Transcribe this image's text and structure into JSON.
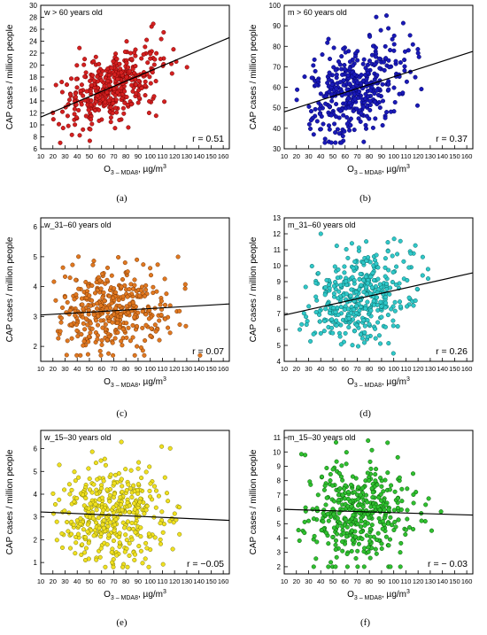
{
  "chart_data": [
    {
      "id": "a",
      "type": "scatter",
      "caption": "(a)",
      "title": "w > 60 years old",
      "xlabel_main": "O",
      "xlabel_sub": "3 – MDA8",
      "xlabel_unit": ", µg/m",
      "ylabel": "CAP cases / million people",
      "xlim": [
        10,
        165
      ],
      "ylim": [
        6,
        30
      ],
      "xticks": [
        10,
        20,
        30,
        40,
        50,
        60,
        70,
        80,
        90,
        100,
        110,
        120,
        130,
        140,
        150,
        160
      ],
      "yticks": [
        6,
        8,
        10,
        12,
        14,
        16,
        18,
        20,
        22,
        24,
        26,
        28,
        30
      ],
      "r_label": "r = 0.51",
      "fit": {
        "x": [
          10,
          165
        ],
        "y": [
          11.3,
          24.6
        ]
      },
      "point_color": "#d42020",
      "point_stroke": "#6a0000",
      "scatter": {
        "n": 400,
        "x_center": 70,
        "x_sd": 22,
        "x_min": 20,
        "x_max": 152,
        "y_mean": 16.2,
        "y_sd": 3.3,
        "r": 0.51,
        "y_min": 7,
        "y_max": 28.5
      }
    },
    {
      "id": "b",
      "type": "scatter",
      "caption": "(b)",
      "title": "m > 60 years old",
      "xlabel_main": "O",
      "xlabel_sub": "3 – MDA8",
      "xlabel_unit": ", µg/m",
      "ylabel": "CAP cases / million people",
      "xlim": [
        10,
        165
      ],
      "ylim": [
        30,
        100
      ],
      "xticks": [
        10,
        20,
        30,
        40,
        50,
        60,
        70,
        80,
        90,
        100,
        110,
        120,
        130,
        140,
        150,
        160
      ],
      "yticks": [
        30,
        40,
        50,
        60,
        70,
        80,
        90,
        100
      ],
      "r_label": "r = 0.37",
      "fit": {
        "x": [
          10,
          165
        ],
        "y": [
          48,
          77.5
        ]
      },
      "point_color": "#1a1ab8",
      "point_stroke": "#000060",
      "scatter": {
        "n": 400,
        "x_center": 70,
        "x_sd": 22,
        "x_min": 20,
        "x_max": 152,
        "y_mean": 59.5,
        "y_sd": 11.5,
        "r": 0.37,
        "y_min": 33,
        "y_max": 95
      }
    },
    {
      "id": "c",
      "type": "scatter",
      "caption": "(c)",
      "title": "w_31–60 years old",
      "xlabel_main": "O",
      "xlabel_sub": "3 – MDA8",
      "xlabel_unit": ", µg/m",
      "ylabel": "CAP cases / million people",
      "xlim": [
        10,
        165
      ],
      "ylim": [
        1.5,
        6.3
      ],
      "xticks": [
        10,
        20,
        30,
        40,
        50,
        60,
        70,
        80,
        90,
        100,
        110,
        120,
        130,
        140,
        150,
        160
      ],
      "yticks": [
        2,
        3,
        4,
        5,
        6
      ],
      "r_label": "r = 0.07",
      "fit": {
        "x": [
          10,
          165
        ],
        "y": [
          3.05,
          3.42
        ]
      },
      "point_color": "#e07820",
      "point_stroke": "#703000",
      "scatter": {
        "n": 400,
        "x_center": 70,
        "x_sd": 22,
        "x_min": 20,
        "x_max": 152,
        "y_mean": 3.2,
        "y_sd": 0.72,
        "r": 0.07,
        "y_min": 1.7,
        "y_max": 5.9
      }
    },
    {
      "id": "d",
      "type": "scatter",
      "caption": "(d)",
      "title": "m_31–60 years old",
      "xlabel_main": "O",
      "xlabel_sub": "3 – MDA8",
      "xlabel_unit": ", µg/m",
      "ylabel": "CAP cases / million people",
      "xlim": [
        10,
        165
      ],
      "ylim": [
        4,
        13
      ],
      "xticks": [
        10,
        20,
        30,
        40,
        50,
        60,
        70,
        80,
        90,
        100,
        110,
        120,
        130,
        140,
        150,
        160
      ],
      "yticks": [
        4,
        5,
        6,
        7,
        8,
        9,
        10,
        11,
        12,
        13
      ],
      "r_label": "r = 0.26",
      "fit": {
        "x": [
          10,
          165
        ],
        "y": [
          6.9,
          9.55
        ]
      },
      "point_color": "#30c8c8",
      "point_stroke": "#006060",
      "scatter": {
        "n": 400,
        "x_center": 70,
        "x_sd": 22,
        "x_min": 20,
        "x_max": 152,
        "y_mean": 8.0,
        "y_sd": 1.45,
        "r": 0.26,
        "y_min": 4.5,
        "y_max": 12
      }
    },
    {
      "id": "e",
      "type": "scatter",
      "caption": "(e)",
      "title": "w_15–30 years old",
      "xlabel_main": "O",
      "xlabel_sub": "3 – MDA8",
      "xlabel_unit": ", µg/m",
      "ylabel": "CAP cases / million people",
      "xlim": [
        10,
        165
      ],
      "ylim": [
        0.5,
        6.8
      ],
      "xticks": [
        10,
        20,
        30,
        40,
        50,
        60,
        70,
        80,
        90,
        100,
        110,
        120,
        130,
        140,
        150,
        160
      ],
      "yticks": [
        1,
        2,
        3,
        4,
        5,
        6
      ],
      "r_label": "r = −0.05",
      "fit": {
        "x": [
          10,
          165
        ],
        "y": [
          3.22,
          2.85
        ]
      },
      "point_color": "#f0e020",
      "point_stroke": "#707000",
      "scatter": {
        "n": 400,
        "x_center": 70,
        "x_sd": 22,
        "x_min": 20,
        "x_max": 152,
        "y_mean": 3.1,
        "y_sd": 1.05,
        "r": -0.05,
        "y_min": 0.8,
        "y_max": 6.5
      }
    },
    {
      "id": "f",
      "type": "scatter",
      "caption": "(f)",
      "title": "m_15–30 years old",
      "xlabel_main": "O",
      "xlabel_sub": "3 – MDA8",
      "xlabel_unit": ", µg/m",
      "ylabel": "CAP cases / million people",
      "xlim": [
        10,
        165
      ],
      "ylim": [
        1.5,
        11.5
      ],
      "xticks": [
        10,
        20,
        30,
        40,
        50,
        60,
        70,
        80,
        90,
        100,
        110,
        120,
        130,
        140,
        150,
        160
      ],
      "yticks": [
        2,
        3,
        4,
        5,
        6,
        7,
        8,
        9,
        10,
        11
      ],
      "r_label": "r = − 0.03",
      "fit": {
        "x": [
          10,
          165
        ],
        "y": [
          6.0,
          5.6
        ]
      },
      "point_color": "#30c030",
      "point_stroke": "#005000",
      "scatter": {
        "n": 400,
        "x_center": 70,
        "x_sd": 22,
        "x_min": 20,
        "x_max": 152,
        "y_mean": 5.9,
        "y_sd": 1.75,
        "r": -0.03,
        "y_min": 2,
        "y_max": 11
      }
    }
  ]
}
